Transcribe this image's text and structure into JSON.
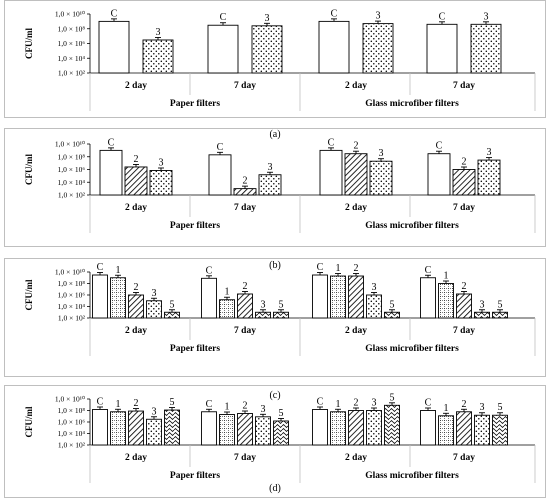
{
  "chart_data": [
    {
      "type": "bar",
      "panel_label": "(a)",
      "ylabel": "CFU/ml",
      "yticks": [
        "1,0 × 10¹⁰",
        "1,0 × 10⁸",
        "1,0 × 10⁶",
        "1,0 × 10⁴",
        "1,0 × 10²"
      ],
      "yscale": "log",
      "ylim": [
        100,
        10000000000
      ],
      "filter_groups": [
        "Paper filters",
        "Glass microfiber filters"
      ],
      "days": [
        "2 day",
        "7 day"
      ],
      "clusters": [
        {
          "filter": 0,
          "day": 0,
          "bars": [
            {
              "label": "C",
              "pattern": "white",
              "value": 1000000000.0
            },
            {
              "label": "3",
              "pattern": "dots",
              "value": 3000000.0
            }
          ]
        },
        {
          "filter": 0,
          "day": 1,
          "bars": [
            {
              "label": "C",
              "pattern": "white",
              "value": 300000000.0
            },
            {
              "label": "3",
              "pattern": "dots",
              "value": 250000000.0
            }
          ]
        },
        {
          "filter": 1,
          "day": 0,
          "bars": [
            {
              "label": "C",
              "pattern": "white",
              "value": 1000000000.0
            },
            {
              "label": "3",
              "pattern": "dots",
              "value": 500000000.0
            }
          ]
        },
        {
          "filter": 1,
          "day": 1,
          "bars": [
            {
              "label": "C",
              "pattern": "white",
              "value": 400000000.0
            },
            {
              "label": "3",
              "pattern": "dots",
              "value": 400000000.0
            }
          ]
        }
      ]
    },
    {
      "type": "bar",
      "panel_label": "(b)",
      "ylabel": "CFU/ml",
      "yticks": [
        "1,0 × 10¹⁰",
        "1,0 × 10⁸",
        "1,0 × 10⁶",
        "1,0 × 10⁴",
        "1,0 × 10²"
      ],
      "yscale": "log",
      "ylim": [
        100,
        10000000000
      ],
      "filter_groups": [
        "Paper filters",
        "Glass microfiber filters"
      ],
      "days": [
        "2 day",
        "7 day"
      ],
      "clusters": [
        {
          "filter": 0,
          "day": 0,
          "bars": [
            {
              "label": "C",
              "pattern": "white",
              "value": 1000000000.0
            },
            {
              "label": "2",
              "pattern": "hatch",
              "value": 2500000.0
            },
            {
              "label": "3",
              "pattern": "dots",
              "value": 700000.0
            }
          ]
        },
        {
          "filter": 0,
          "day": 1,
          "bars": [
            {
              "label": "C",
              "pattern": "white",
              "value": 200000000.0
            },
            {
              "label": "2",
              "pattern": "hatch",
              "value": 1000.0
            },
            {
              "label": "3",
              "pattern": "dots",
              "value": 150000.0
            }
          ]
        },
        {
          "filter": 1,
          "day": 0,
          "bars": [
            {
              "label": "C",
              "pattern": "white",
              "value": 1000000000.0
            },
            {
              "label": "2",
              "pattern": "hatch",
              "value": 300000000.0
            },
            {
              "label": "3",
              "pattern": "dots",
              "value": 20000000.0
            }
          ]
        },
        {
          "filter": 1,
          "day": 1,
          "bars": [
            {
              "label": "C",
              "pattern": "white",
              "value": 300000000.0
            },
            {
              "label": "2",
              "pattern": "hatch",
              "value": 1000000.0
            },
            {
              "label": "3",
              "pattern": "dots",
              "value": 30000000.0
            }
          ]
        }
      ]
    },
    {
      "type": "bar",
      "panel_label": "(c)",
      "ylabel": "CFU/ml",
      "yticks": [
        "1,0 × 10¹⁰",
        "1,0 × 10⁸",
        "1,0 × 10⁶",
        "1,0 × 10⁴",
        "1,0 × 10²"
      ],
      "yscale": "log",
      "ylim": [
        100,
        10000000000
      ],
      "filter_groups": [
        "Paper filters",
        "Glass microfiber filters"
      ],
      "days": [
        "2 day",
        "7 day"
      ],
      "clusters": [
        {
          "filter": 0,
          "day": 0,
          "bars": [
            {
              "label": "C",
              "pattern": "white",
              "value": 3000000000.0
            },
            {
              "label": "1",
              "pattern": "grid",
              "value": 1000000000.0
            },
            {
              "label": "2",
              "pattern": "hatch",
              "value": 1000000.0
            },
            {
              "label": "3",
              "pattern": "dots",
              "value": 100000.0
            },
            {
              "label": "5",
              "pattern": "wave",
              "value": 1000.0
            }
          ]
        },
        {
          "filter": 0,
          "day": 1,
          "bars": [
            {
              "label": "C",
              "pattern": "white",
              "value": 800000000.0
            },
            {
              "label": "1",
              "pattern": "grid",
              "value": 150000.0
            },
            {
              "label": "2",
              "pattern": "hatch",
              "value": 1500000.0
            },
            {
              "label": "3",
              "pattern": "wave",
              "value": 1000.0
            },
            {
              "label": "5",
              "pattern": "wave",
              "value": 1000.0
            }
          ]
        },
        {
          "filter": 1,
          "day": 0,
          "bars": [
            {
              "label": "C",
              "pattern": "white",
              "value": 3000000000.0
            },
            {
              "label": "1",
              "pattern": "grid",
              "value": 2000000000.0
            },
            {
              "label": "2",
              "pattern": "hatch",
              "value": 2000000000.0
            },
            {
              "label": "3",
              "pattern": "dots",
              "value": 1000000.0
            },
            {
              "label": "5",
              "pattern": "wave",
              "value": 1000.0
            }
          ]
        },
        {
          "filter": 1,
          "day": 1,
          "bars": [
            {
              "label": "C",
              "pattern": "white",
              "value": 1000000000.0
            },
            {
              "label": "1",
              "pattern": "grid",
              "value": 100000000.0
            },
            {
              "label": "2",
              "pattern": "hatch",
              "value": 1500000.0
            },
            {
              "label": "3",
              "pattern": "wave",
              "value": 1000.0
            },
            {
              "label": "5",
              "pattern": "wave",
              "value": 1000.0
            }
          ]
        }
      ]
    },
    {
      "type": "bar",
      "panel_label": "(d)",
      "ylabel": "CFU/ml",
      "yticks": [
        "1,0 × 10¹⁰",
        "1,0 × 10⁸",
        "1,0 × 10⁶",
        "1,0 × 10⁴",
        "1,0 × 10²"
      ],
      "yscale": "log",
      "ylim": [
        100,
        10000000000
      ],
      "filter_groups": [
        "Paper filters",
        "Glass microfiber filters"
      ],
      "days": [
        "2 day",
        "7 day"
      ],
      "clusters": [
        {
          "filter": 0,
          "day": 0,
          "bars": [
            {
              "label": "C",
              "pattern": "white",
              "value": 150000000.0
            },
            {
              "label": "1",
              "pattern": "grid",
              "value": 60000000.0
            },
            {
              "label": "2",
              "pattern": "hatch",
              "value": 80000000.0
            },
            {
              "label": "3",
              "pattern": "dots",
              "value": 3000000.0
            },
            {
              "label": "5",
              "pattern": "wave",
              "value": 120000000.0
            }
          ]
        },
        {
          "filter": 0,
          "day": 1,
          "bars": [
            {
              "label": "C",
              "pattern": "white",
              "value": 60000000.0
            },
            {
              "label": "1",
              "pattern": "grid",
              "value": 20000000.0
            },
            {
              "label": "2",
              "pattern": "hatch",
              "value": 30000000.0
            },
            {
              "label": "3",
              "pattern": "dots",
              "value": 8000000.0
            },
            {
              "label": "5",
              "pattern": "wave",
              "value": 1500000.0
            }
          ]
        },
        {
          "filter": 1,
          "day": 0,
          "bars": [
            {
              "label": "C",
              "pattern": "white",
              "value": 150000000.0
            },
            {
              "label": "1",
              "pattern": "grid",
              "value": 60000000.0
            },
            {
              "label": "2",
              "pattern": "hatch",
              "value": 100000000.0
            },
            {
              "label": "3",
              "pattern": "dots",
              "value": 100000000.0
            },
            {
              "label": "5",
              "pattern": "wave",
              "value": 800000000.0
            }
          ]
        },
        {
          "filter": 1,
          "day": 1,
          "bars": [
            {
              "label": "C",
              "pattern": "white",
              "value": 100000000.0
            },
            {
              "label": "1",
              "pattern": "grid",
              "value": 12000000.0
            },
            {
              "label": "2",
              "pattern": "hatch",
              "value": 60000000.0
            },
            {
              "label": "3",
              "pattern": "dots",
              "value": 15000000.0
            },
            {
              "label": "5",
              "pattern": "wave",
              "value": 15000000.0
            }
          ]
        }
      ]
    }
  ]
}
